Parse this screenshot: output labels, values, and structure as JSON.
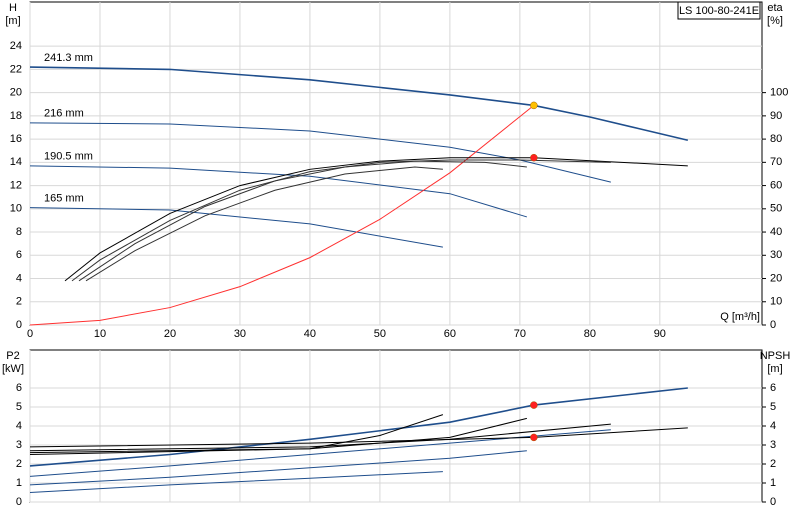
{
  "chart_data": [
    {
      "type": "line",
      "title": "LS 100-80-241E",
      "y_label": "H",
      "y_unit": "[m]",
      "y2_label": "eta",
      "y2_unit": "[%]",
      "x_label": "Q [m³/h]",
      "xlim": [
        0,
        104.6
      ],
      "ylim": [
        0,
        27.8
      ],
      "y2lim": [
        0,
        139
      ],
      "xticks": [
        0,
        10,
        20,
        30,
        40,
        50,
        60,
        70,
        80,
        90
      ],
      "yticks": [
        0,
        2,
        4,
        6,
        8,
        10,
        12,
        14,
        16,
        18,
        20,
        22,
        24
      ],
      "y2ticks": [
        0,
        10,
        20,
        30,
        40,
        50,
        60,
        70,
        80,
        90,
        100
      ],
      "grid": true,
      "series": [
        {
          "name": "241.3 mm",
          "color": "#1f4e8c",
          "x": [
            0,
            20,
            40,
            60,
            72,
            80,
            94
          ],
          "values": [
            22.2,
            22,
            21.1,
            19.8,
            18.9,
            17.9,
            15.9
          ]
        },
        {
          "name": "216 mm",
          "color": "#1f4e8c",
          "x": [
            0,
            20,
            40,
            60,
            70,
            83
          ],
          "values": [
            17.4,
            17.3,
            16.7,
            15.3,
            14.2,
            12.3
          ]
        },
        {
          "name": "190.5 mm",
          "color": "#1f4e8c",
          "x": [
            0,
            20,
            40,
            60,
            71
          ],
          "values": [
            13.7,
            13.5,
            12.8,
            11.3,
            9.3
          ]
        },
        {
          "name": "165 mm",
          "color": "#1f4e8c",
          "x": [
            0,
            20,
            40,
            59
          ],
          "values": [
            10.1,
            9.9,
            8.7,
            6.7
          ]
        },
        {
          "color": "#ff3030",
          "x": [
            0,
            10,
            20,
            30,
            40,
            50,
            60,
            72
          ],
          "values": [
            0,
            0.4,
            1.5,
            3.3,
            5.8,
            9.1,
            13.1,
            18.9
          ]
        },
        {
          "color": "#000000",
          "axis": "y2",
          "x": [
            5,
            10,
            20,
            30,
            40,
            50,
            60,
            72,
            94
          ],
          "values": [
            19,
            31,
            48,
            60,
            67,
            70.5,
            72,
            72,
            68.5
          ]
        },
        {
          "color": "#333333",
          "axis": "y2",
          "x": [
            6,
            10,
            20,
            30,
            40,
            50,
            60,
            70,
            83
          ],
          "values": [
            19,
            28,
            45,
            58,
            66,
            70,
            71,
            71,
            70
          ]
        },
        {
          "color": "#333333",
          "axis": "y2",
          "x": [
            7,
            15,
            25,
            35,
            45,
            55,
            65,
            71
          ],
          "values": [
            19,
            35,
            51,
            62,
            68,
            70.5,
            70,
            68
          ]
        },
        {
          "color": "#333333",
          "axis": "y2",
          "x": [
            8,
            15,
            25,
            35,
            45,
            55,
            59
          ],
          "values": [
            19,
            32,
            47,
            58,
            65,
            68,
            67
          ]
        }
      ],
      "markers": [
        {
          "x": 72,
          "y": 18.9,
          "color": "#ffc000"
        },
        {
          "x": 72,
          "y": 72,
          "color": "#ff2020",
          "axis": "y2"
        }
      ]
    },
    {
      "type": "line",
      "y_label": "P2",
      "y_unit": "[kW]",
      "y2_label": "NPSH",
      "y2_unit": "[m]",
      "xlim": [
        0,
        104.6
      ],
      "ylim": [
        0,
        8
      ],
      "y2lim": [
        0,
        8
      ],
      "xticks": [
        0,
        10,
        20,
        30,
        40,
        50,
        60,
        70,
        80,
        90
      ],
      "yticks": [
        0,
        1,
        2,
        3,
        4,
        5,
        6
      ],
      "y2ticks": [
        0,
        1,
        2,
        3,
        4,
        5,
        6
      ],
      "grid": true,
      "series": [
        {
          "color": "#1f4e8c",
          "x": [
            0,
            20,
            40,
            60,
            72,
            94
          ],
          "values": [
            1.9,
            2.5,
            3.3,
            4.2,
            5.1,
            6.0
          ]
        },
        {
          "color": "#1f4e8c",
          "x": [
            0,
            20,
            40,
            60,
            83
          ],
          "values": [
            1.35,
            1.9,
            2.5,
            3.1,
            3.8
          ]
        },
        {
          "color": "#1f4e8c",
          "x": [
            0,
            20,
            40,
            60,
            71
          ],
          "values": [
            0.9,
            1.3,
            1.8,
            2.3,
            2.7
          ]
        },
        {
          "color": "#1f4e8c",
          "x": [
            0,
            20,
            40,
            59
          ],
          "values": [
            0.5,
            0.9,
            1.25,
            1.6
          ]
        },
        {
          "color": "#000000",
          "axis": "y2",
          "x": [
            0,
            40,
            72,
            94
          ],
          "values": [
            2.9,
            3.1,
            3.4,
            3.9
          ]
        },
        {
          "color": "#000000",
          "axis": "y2",
          "x": [
            0,
            40,
            60,
            83
          ],
          "values": [
            2.7,
            2.9,
            3.3,
            4.1
          ]
        },
        {
          "color": "#000000",
          "axis": "y2",
          "x": [
            0,
            40,
            60,
            71
          ],
          "values": [
            2.6,
            2.8,
            3.4,
            4.4
          ]
        },
        {
          "color": "#000000",
          "axis": "y2",
          "x": [
            0,
            40,
            50,
            59
          ],
          "values": [
            2.5,
            2.8,
            3.5,
            4.6
          ]
        }
      ],
      "markers": [
        {
          "x": 72,
          "y": 5.1,
          "color": "#ff2020"
        },
        {
          "x": 72,
          "y": 3.4,
          "color": "#ff2020",
          "axis": "y2"
        }
      ]
    }
  ]
}
